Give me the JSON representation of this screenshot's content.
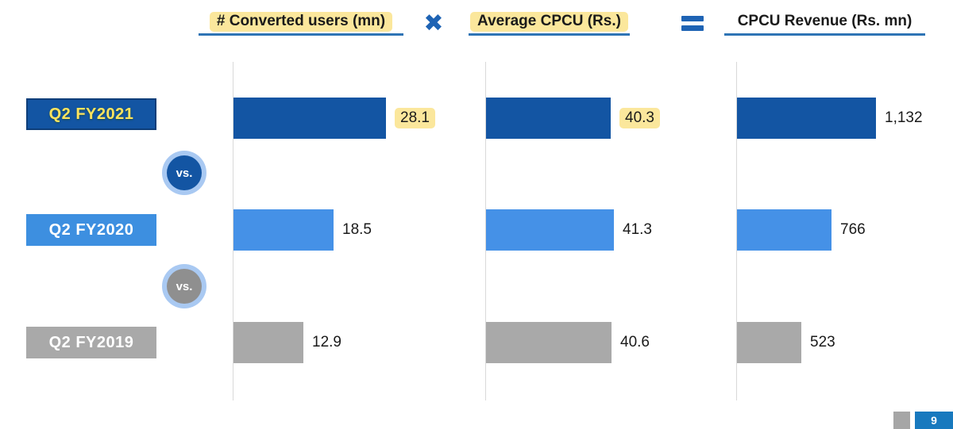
{
  "header": {
    "columns": [
      {
        "label": "# Converted users (mn)",
        "highlighted": true
      },
      {
        "label": "Average CPCU (Rs.)",
        "highlighted": true
      },
      {
        "label": "CPCU Revenue (Rs. mn)",
        "highlighted": false
      }
    ],
    "multiply_symbol": "✖",
    "equals_symbol": "="
  },
  "rows": [
    {
      "label": "Q2 FY2021"
    },
    {
      "label": "Q2 FY2020"
    },
    {
      "label": "Q2 FY2019"
    }
  ],
  "vs_separators": [
    {
      "label": "vs."
    },
    {
      "label": "vs."
    }
  ],
  "footer": {
    "page_number": "9"
  },
  "chart_data": [
    {
      "type": "bar",
      "orientation": "horizontal",
      "title": "# Converted users (mn)",
      "categories": [
        "Q2 FY2021",
        "Q2 FY2020",
        "Q2 FY2019"
      ],
      "values": [
        28.1,
        18.5,
        12.9
      ],
      "display_values": [
        "28.1",
        "18.5",
        "12.9"
      ],
      "value_highlighted": [
        true,
        false,
        false
      ],
      "bar_colors": [
        "#1355A3",
        "#4591E7",
        "#A9A9A9"
      ],
      "grid": false,
      "legend": "none"
    },
    {
      "type": "bar",
      "orientation": "horizontal",
      "title": "Average CPCU (Rs.)",
      "categories": [
        "Q2 FY2021",
        "Q2 FY2020",
        "Q2 FY2019"
      ],
      "values": [
        40.3,
        41.3,
        40.6
      ],
      "display_values": [
        "40.3",
        "41.3",
        "40.6"
      ],
      "value_highlighted": [
        true,
        false,
        false
      ],
      "bar_colors": [
        "#1355A3",
        "#4591E7",
        "#A9A9A9"
      ],
      "grid": false,
      "legend": "none"
    },
    {
      "type": "bar",
      "orientation": "horizontal",
      "title": "CPCU Revenue (Rs. mn)",
      "categories": [
        "Q2 FY2021",
        "Q2 FY2020",
        "Q2 FY2019"
      ],
      "values": [
        1132,
        766,
        523
      ],
      "display_values": [
        "1,132",
        "766",
        "523"
      ],
      "value_highlighted": [
        false,
        false,
        false
      ],
      "bar_colors": [
        "#1355A3",
        "#4591E7",
        "#A9A9A9"
      ],
      "grid": false,
      "legend": "none"
    }
  ],
  "colors": {
    "dark_blue": "#1355A3",
    "medium_blue": "#4591E7",
    "gray": "#A9A9A9",
    "yellow_highlight": "#FBE79C",
    "label_yellow_text": "#FFE45E",
    "underline_blue": "#2E74B5",
    "operator_blue": "#1E63B4",
    "vs_ring_blue": "#A9C9F2",
    "vs_gray": "#8F8F8F",
    "axis_gray": "#D9D9D9",
    "footer_blue": "#1879BE",
    "footer_gray": "#A6A6A6"
  }
}
